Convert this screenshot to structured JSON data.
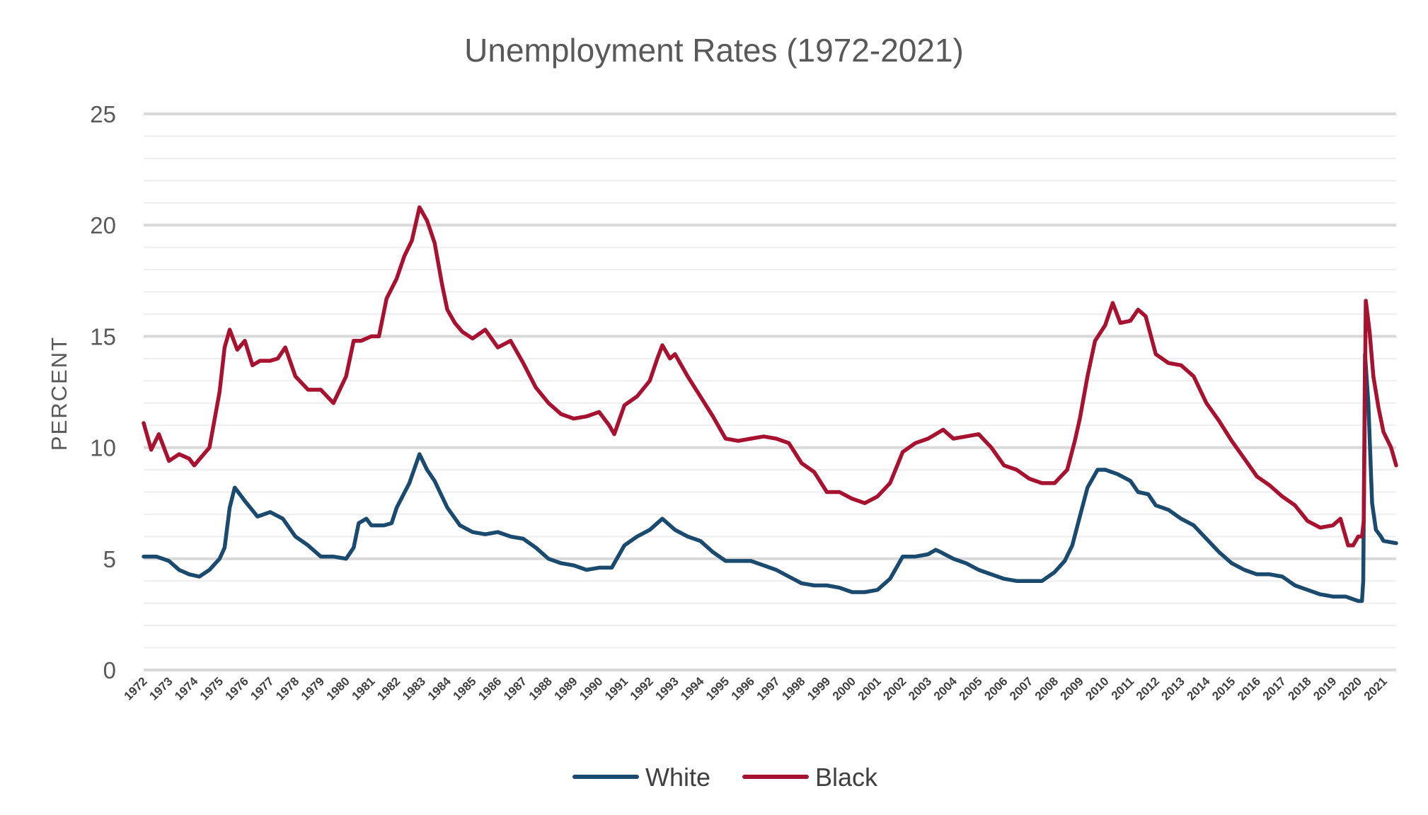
{
  "chart_data": {
    "type": "line",
    "title": "Unemployment Rates (1972-2021)",
    "xlabel": "",
    "ylabel": "PERCENT",
    "ylim": [
      0,
      25
    ],
    "yticks": [
      0,
      5,
      10,
      15,
      20,
      25
    ],
    "xlim": [
      1972,
      2021.5
    ],
    "xticks": [
      "1972",
      "1973",
      "1974",
      "1975",
      "1976",
      "1977",
      "1978",
      "1979",
      "1980",
      "1981",
      "1982",
      "1983",
      "1984",
      "1985",
      "1986",
      "1987",
      "1988",
      "1989",
      "1990",
      "1991",
      "1992",
      "1993",
      "1994",
      "1995",
      "1996",
      "1997",
      "1998",
      "1999",
      "2000",
      "2001",
      "2002",
      "2003",
      "2004",
      "2005",
      "2006",
      "2007",
      "2008",
      "2009",
      "2010",
      "2011",
      "2012",
      "2013",
      "2014",
      "2015",
      "2016",
      "2017",
      "2018",
      "2019",
      "2020",
      "2021"
    ],
    "grid": true,
    "legend": "bottom",
    "series": [
      {
        "name": "White",
        "color": "#1a4a6e",
        "points": [
          [
            1972.0,
            5.1
          ],
          [
            1972.5,
            5.1
          ],
          [
            1973.0,
            4.9
          ],
          [
            1973.4,
            4.5
          ],
          [
            1973.8,
            4.3
          ],
          [
            1974.2,
            4.2
          ],
          [
            1974.6,
            4.5
          ],
          [
            1975.0,
            5.0
          ],
          [
            1975.2,
            5.5
          ],
          [
            1975.4,
            7.3
          ],
          [
            1975.6,
            8.2
          ],
          [
            1975.8,
            7.9
          ],
          [
            1976.0,
            7.6
          ],
          [
            1976.5,
            6.9
          ],
          [
            1977.0,
            7.1
          ],
          [
            1977.5,
            6.8
          ],
          [
            1978.0,
            6.0
          ],
          [
            1978.5,
            5.6
          ],
          [
            1979.0,
            5.1
          ],
          [
            1979.5,
            5.1
          ],
          [
            1980.0,
            5.0
          ],
          [
            1980.3,
            5.5
          ],
          [
            1980.5,
            6.6
          ],
          [
            1980.8,
            6.8
          ],
          [
            1981.0,
            6.5
          ],
          [
            1981.5,
            6.5
          ],
          [
            1981.8,
            6.6
          ],
          [
            1982.0,
            7.3
          ],
          [
            1982.5,
            8.4
          ],
          [
            1982.9,
            9.7
          ],
          [
            1983.2,
            9.0
          ],
          [
            1983.5,
            8.5
          ],
          [
            1984.0,
            7.3
          ],
          [
            1984.5,
            6.5
          ],
          [
            1985.0,
            6.2
          ],
          [
            1985.5,
            6.1
          ],
          [
            1986.0,
            6.2
          ],
          [
            1986.5,
            6.0
          ],
          [
            1987.0,
            5.9
          ],
          [
            1987.5,
            5.5
          ],
          [
            1988.0,
            5.0
          ],
          [
            1988.5,
            4.8
          ],
          [
            1989.0,
            4.7
          ],
          [
            1989.5,
            4.5
          ],
          [
            1990.0,
            4.6
          ],
          [
            1990.5,
            4.6
          ],
          [
            1991.0,
            5.6
          ],
          [
            1991.5,
            6.0
          ],
          [
            1992.0,
            6.3
          ],
          [
            1992.3,
            6.6
          ],
          [
            1992.5,
            6.8
          ],
          [
            1993.0,
            6.3
          ],
          [
            1993.5,
            6.0
          ],
          [
            1994.0,
            5.8
          ],
          [
            1994.5,
            5.3
          ],
          [
            1995.0,
            4.9
          ],
          [
            1995.5,
            4.9
          ],
          [
            1996.0,
            4.9
          ],
          [
            1996.5,
            4.7
          ],
          [
            1997.0,
            4.5
          ],
          [
            1997.5,
            4.2
          ],
          [
            1998.0,
            3.9
          ],
          [
            1998.5,
            3.8
          ],
          [
            1999.0,
            3.8
          ],
          [
            1999.5,
            3.7
          ],
          [
            2000.0,
            3.5
          ],
          [
            2000.5,
            3.5
          ],
          [
            2001.0,
            3.6
          ],
          [
            2001.5,
            4.1
          ],
          [
            2002.0,
            5.1
          ],
          [
            2002.5,
            5.1
          ],
          [
            2003.0,
            5.2
          ],
          [
            2003.3,
            5.4
          ],
          [
            2003.5,
            5.3
          ],
          [
            2004.0,
            5.0
          ],
          [
            2004.5,
            4.8
          ],
          [
            2005.0,
            4.5
          ],
          [
            2005.5,
            4.3
          ],
          [
            2006.0,
            4.1
          ],
          [
            2006.5,
            4.0
          ],
          [
            2007.0,
            4.0
          ],
          [
            2007.5,
            4.0
          ],
          [
            2008.0,
            4.4
          ],
          [
            2008.4,
            4.9
          ],
          [
            2008.7,
            5.6
          ],
          [
            2009.0,
            6.9
          ],
          [
            2009.3,
            8.2
          ],
          [
            2009.7,
            9.0
          ],
          [
            2010.0,
            9.0
          ],
          [
            2010.5,
            8.8
          ],
          [
            2011.0,
            8.5
          ],
          [
            2011.3,
            8.0
          ],
          [
            2011.7,
            7.9
          ],
          [
            2012.0,
            7.4
          ],
          [
            2012.5,
            7.2
          ],
          [
            2013.0,
            6.8
          ],
          [
            2013.5,
            6.5
          ],
          [
            2014.0,
            5.9
          ],
          [
            2014.5,
            5.3
          ],
          [
            2015.0,
            4.8
          ],
          [
            2015.5,
            4.5
          ],
          [
            2016.0,
            4.3
          ],
          [
            2016.5,
            4.3
          ],
          [
            2017.0,
            4.2
          ],
          [
            2017.5,
            3.8
          ],
          [
            2018.0,
            3.6
          ],
          [
            2018.5,
            3.4
          ],
          [
            2019.0,
            3.3
          ],
          [
            2019.5,
            3.3
          ],
          [
            2020.0,
            3.1
          ],
          [
            2020.15,
            3.1
          ],
          [
            2020.2,
            4.0
          ],
          [
            2020.27,
            14.2
          ],
          [
            2020.4,
            12.0
          ],
          [
            2020.55,
            7.5
          ],
          [
            2020.7,
            6.3
          ],
          [
            2020.9,
            6.0
          ],
          [
            2021.0,
            5.8
          ],
          [
            2021.5,
            5.7
          ]
        ]
      },
      {
        "name": "Black",
        "color": "#a6122f",
        "points": [
          [
            1972.0,
            11.1
          ],
          [
            1972.3,
            9.9
          ],
          [
            1972.6,
            10.6
          ],
          [
            1973.0,
            9.4
          ],
          [
            1973.4,
            9.7
          ],
          [
            1973.8,
            9.5
          ],
          [
            1974.0,
            9.2
          ],
          [
            1974.3,
            9.6
          ],
          [
            1974.6,
            10.0
          ],
          [
            1975.0,
            12.5
          ],
          [
            1975.2,
            14.5
          ],
          [
            1975.4,
            15.3
          ],
          [
            1975.7,
            14.4
          ],
          [
            1976.0,
            14.8
          ],
          [
            1976.3,
            13.7
          ],
          [
            1976.6,
            13.9
          ],
          [
            1977.0,
            13.9
          ],
          [
            1977.3,
            14.0
          ],
          [
            1977.6,
            14.5
          ],
          [
            1978.0,
            13.2
          ],
          [
            1978.5,
            12.6
          ],
          [
            1979.0,
            12.6
          ],
          [
            1979.5,
            12.0
          ],
          [
            1980.0,
            13.2
          ],
          [
            1980.3,
            14.8
          ],
          [
            1980.6,
            14.8
          ],
          [
            1981.0,
            15.0
          ],
          [
            1981.3,
            15.0
          ],
          [
            1981.6,
            16.7
          ],
          [
            1982.0,
            17.6
          ],
          [
            1982.3,
            18.6
          ],
          [
            1982.6,
            19.3
          ],
          [
            1982.9,
            20.8
          ],
          [
            1983.2,
            20.2
          ],
          [
            1983.5,
            19.2
          ],
          [
            1983.8,
            17.3
          ],
          [
            1984.0,
            16.2
          ],
          [
            1984.3,
            15.6
          ],
          [
            1984.6,
            15.2
          ],
          [
            1985.0,
            14.9
          ],
          [
            1985.5,
            15.3
          ],
          [
            1986.0,
            14.5
          ],
          [
            1986.5,
            14.8
          ],
          [
            1987.0,
            13.8
          ],
          [
            1987.5,
            12.7
          ],
          [
            1988.0,
            12.0
          ],
          [
            1988.5,
            11.5
          ],
          [
            1989.0,
            11.3
          ],
          [
            1989.5,
            11.4
          ],
          [
            1990.0,
            11.6
          ],
          [
            1990.4,
            11.0
          ],
          [
            1990.6,
            10.6
          ],
          [
            1991.0,
            11.9
          ],
          [
            1991.5,
            12.3
          ],
          [
            1992.0,
            13.0
          ],
          [
            1992.3,
            14.0
          ],
          [
            1992.5,
            14.6
          ],
          [
            1992.8,
            14.0
          ],
          [
            1993.0,
            14.2
          ],
          [
            1993.5,
            13.2
          ],
          [
            1994.0,
            12.3
          ],
          [
            1994.5,
            11.4
          ],
          [
            1995.0,
            10.4
          ],
          [
            1995.5,
            10.3
          ],
          [
            1996.0,
            10.4
          ],
          [
            1996.5,
            10.5
          ],
          [
            1997.0,
            10.4
          ],
          [
            1997.5,
            10.2
          ],
          [
            1998.0,
            9.3
          ],
          [
            1998.5,
            8.9
          ],
          [
            1999.0,
            8.0
          ],
          [
            1999.5,
            8.0
          ],
          [
            2000.0,
            7.7
          ],
          [
            2000.5,
            7.5
          ],
          [
            2001.0,
            7.8
          ],
          [
            2001.5,
            8.4
          ],
          [
            2002.0,
            9.8
          ],
          [
            2002.5,
            10.2
          ],
          [
            2003.0,
            10.4
          ],
          [
            2003.3,
            10.6
          ],
          [
            2003.6,
            10.8
          ],
          [
            2004.0,
            10.4
          ],
          [
            2004.5,
            10.5
          ],
          [
            2005.0,
            10.6
          ],
          [
            2005.5,
            10.0
          ],
          [
            2006.0,
            9.2
          ],
          [
            2006.5,
            9.0
          ],
          [
            2007.0,
            8.6
          ],
          [
            2007.5,
            8.4
          ],
          [
            2008.0,
            8.4
          ],
          [
            2008.5,
            9.0
          ],
          [
            2008.8,
            10.3
          ],
          [
            2009.0,
            11.3
          ],
          [
            2009.3,
            13.2
          ],
          [
            2009.6,
            14.8
          ],
          [
            2010.0,
            15.5
          ],
          [
            2010.3,
            16.5
          ],
          [
            2010.6,
            15.6
          ],
          [
            2011.0,
            15.7
          ],
          [
            2011.3,
            16.2
          ],
          [
            2011.6,
            15.9
          ],
          [
            2012.0,
            14.2
          ],
          [
            2012.5,
            13.8
          ],
          [
            2013.0,
            13.7
          ],
          [
            2013.5,
            13.2
          ],
          [
            2014.0,
            12.0
          ],
          [
            2014.5,
            11.2
          ],
          [
            2015.0,
            10.3
          ],
          [
            2015.5,
            9.5
          ],
          [
            2016.0,
            8.7
          ],
          [
            2016.5,
            8.3
          ],
          [
            2017.0,
            7.8
          ],
          [
            2017.5,
            7.4
          ],
          [
            2018.0,
            6.7
          ],
          [
            2018.5,
            6.4
          ],
          [
            2019.0,
            6.5
          ],
          [
            2019.3,
            6.8
          ],
          [
            2019.6,
            5.6
          ],
          [
            2019.8,
            5.6
          ],
          [
            2020.0,
            6.0
          ],
          [
            2020.15,
            6.0
          ],
          [
            2020.22,
            6.7
          ],
          [
            2020.3,
            16.6
          ],
          [
            2020.45,
            15.2
          ],
          [
            2020.6,
            13.2
          ],
          [
            2020.8,
            11.8
          ],
          [
            2021.0,
            10.7
          ],
          [
            2021.3,
            10.0
          ],
          [
            2021.5,
            9.2
          ]
        ]
      }
    ]
  }
}
